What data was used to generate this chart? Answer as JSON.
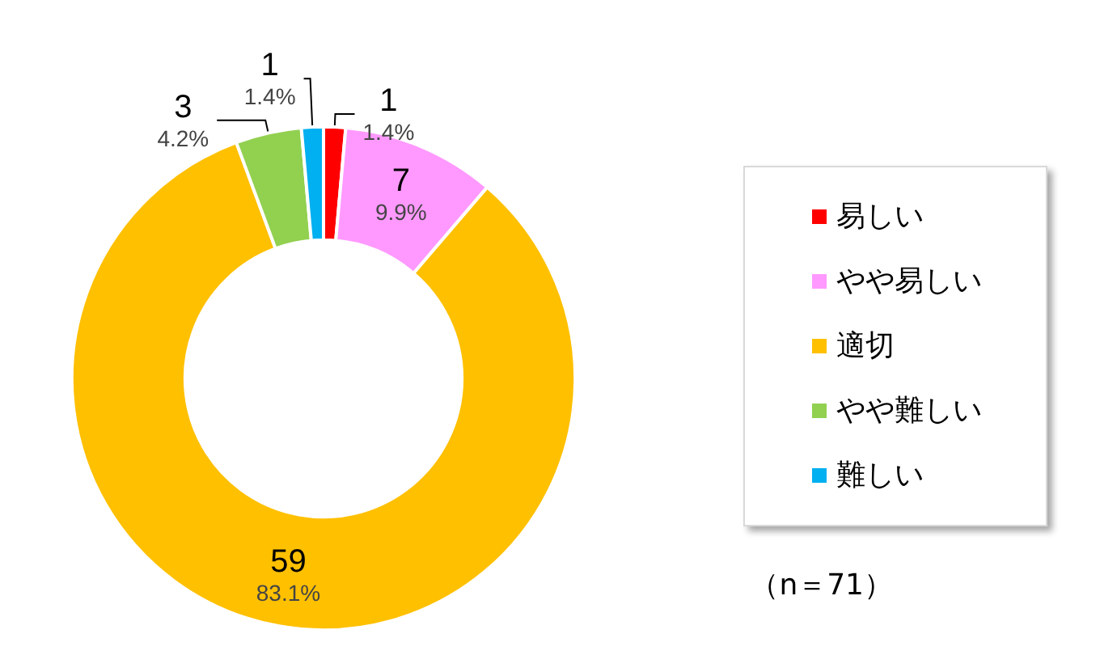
{
  "chart_data": {
    "type": "donut",
    "categories": [
      "易しい",
      "やや易しい",
      "適切",
      "やや難しい",
      "難しい"
    ],
    "values": [
      1,
      7,
      59,
      3,
      1
    ],
    "value_labels": [
      "1\n1.4%",
      "7\n9.9%",
      "59\n83.1%",
      "3\n4.2%",
      "1\n1.4%"
    ],
    "colors": [
      "#ff0000",
      "#ff99ff",
      "#ffc000",
      "#92d050",
      "#00b0f0"
    ],
    "legend": "right",
    "annotations": [
      "（n＝71）"
    ]
  }
}
